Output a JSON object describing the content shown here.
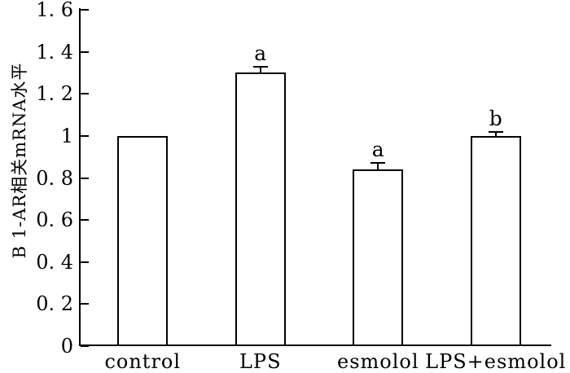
{
  "figure": {
    "background": "#ffffff",
    "ink_color": "#000000"
  },
  "chart_data": {
    "type": "bar",
    "title": "",
    "xlabel": "",
    "ylabel": "B 1-AR相关mRNA水平",
    "categories": [
      "control",
      "LPS",
      "esmolol",
      "LPS+esmolol"
    ],
    "values": [
      1.0,
      1.3,
      0.84,
      1.0
    ],
    "error_up": [
      0,
      0.03,
      0.03,
      0.02
    ],
    "sig_labels": [
      "",
      "a",
      "a",
      "b"
    ],
    "ylim": [
      0,
      1.6
    ],
    "yticks": [
      {
        "value": 1.6,
        "label": "1. 6"
      },
      {
        "value": 1.4,
        "label": "1. 4"
      },
      {
        "value": 1.2,
        "label": "1. 2"
      },
      {
        "value": 1.0,
        "label": "1"
      },
      {
        "value": 0.8,
        "label": "0. 8"
      },
      {
        "value": 0.6,
        "label": "0. 6"
      },
      {
        "value": 0.4,
        "label": "0. 4"
      },
      {
        "value": 0.2,
        "label": "0. 2"
      },
      {
        "value": 0,
        "label": "0"
      }
    ],
    "grid": false,
    "legend_position": "none",
    "bar_fill": "#ffffff",
    "bar_border": "#000000"
  }
}
